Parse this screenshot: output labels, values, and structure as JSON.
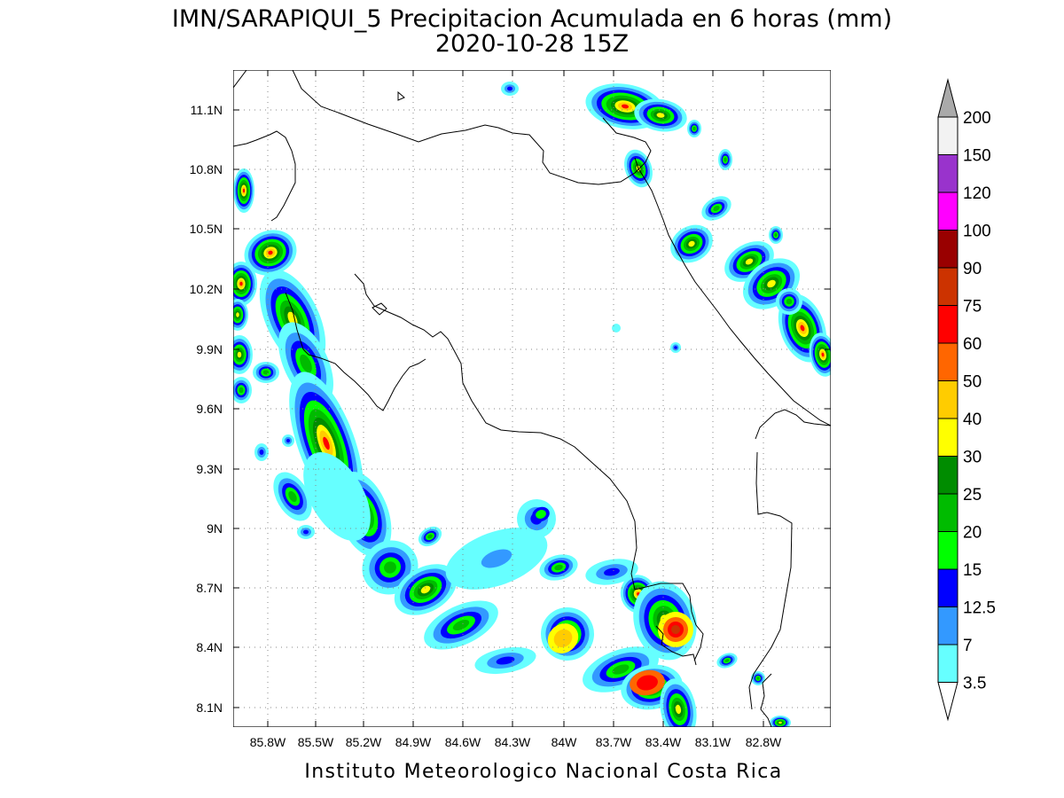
{
  "title": {
    "line1": "IMN/SARAPIQUI_5 Precipitacion Acumulada en 6 horas (mm)",
    "line2": "2020-10-28 15Z"
  },
  "footer": "Instituto Meteorologico Nacional Costa Rica",
  "map": {
    "lon_range": [
      -86.0,
      -82.5
    ],
    "lat_range": [
      8.0,
      11.3
    ],
    "grid": "dotted",
    "lon_ticks": [
      "85.8W",
      "85.5W",
      "85.2W",
      "84.9W",
      "84.6W",
      "84.3W",
      "84W",
      "83.7W",
      "83.4W",
      "83.1W",
      "82.8W"
    ],
    "lat_ticks": [
      "11.1N",
      "10.8N",
      "10.5N",
      "10.2N",
      "9.9N",
      "9.6N",
      "9.3N",
      "9N",
      "8.7N",
      "8.4N",
      "8.1N"
    ]
  },
  "colorbar": {
    "unit": "mm",
    "levels": [
      "200",
      "150",
      "120",
      "100",
      "90",
      "75",
      "60",
      "50",
      "40",
      "30",
      "25",
      "20",
      "15",
      "12.5",
      "7",
      "3.5"
    ],
    "colors": [
      "#ffffff",
      "#f2f2f2",
      "#9933cc",
      "#ff00ff",
      "#990000",
      "#cc3300",
      "#ff0000",
      "#ff6600",
      "#ffcc00",
      "#ffff00",
      "#008c00",
      "#00bb00",
      "#00ff00",
      "#0000ff",
      "#3399ff",
      "#66ffff",
      "#ffffff"
    ],
    "over_color": "#aaaaaa"
  }
}
